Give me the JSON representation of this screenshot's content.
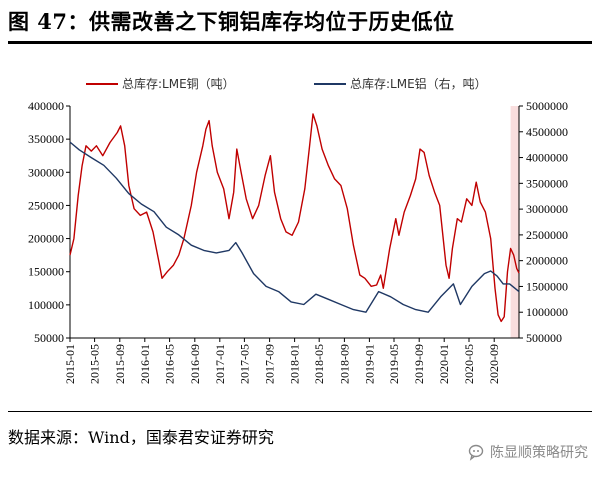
{
  "title": "图 47：供需改善之下铜铝库存均位于历史低位",
  "source": "数据来源：Wind，国泰君安证券研究",
  "watermark": "陈显顺策略研究",
  "watermark_icon": "wechat-bubble-icon",
  "colors": {
    "copper": "#c00000",
    "aluminium": "#1f3864",
    "highlight": "#f9dede"
  },
  "chart_data": {
    "type": "line",
    "title": "",
    "legend_position": "top",
    "grid": false,
    "x_ticks": [
      "2015-01",
      "2015-05",
      "2015-09",
      "2016-01",
      "2016-05",
      "2016-09",
      "2017-01",
      "2017-05",
      "2017-09",
      "2018-01",
      "2018-05",
      "2018-09",
      "2019-01",
      "2019-05",
      "2019-09",
      "2020-01",
      "2020-05",
      "2020-09"
    ],
    "x_range": [
      "2015-01-01",
      "2020-12-31"
    ],
    "highlight_period": [
      "2020-11-20",
      "2020-12-31"
    ],
    "y_left": {
      "min": 50000,
      "max": 400000,
      "ticks": [
        "50000",
        "100000",
        "150000",
        "200000",
        "250000",
        "300000",
        "350000",
        "400000"
      ]
    },
    "y_right": {
      "min": 500000,
      "max": 5000000,
      "ticks": [
        "500000",
        "1000000",
        "1500000",
        "2000000",
        "2500000",
        "3000000",
        "3500000",
        "4000000",
        "4500000",
        "5000000"
      ]
    },
    "series": [
      {
        "name": "总库存:LME铜（吨）",
        "axis": "left",
        "color": "#c00000",
        "points": [
          [
            "2015-01-01",
            175000
          ],
          [
            "2015-01-20",
            200000
          ],
          [
            "2015-02-10",
            265000
          ],
          [
            "2015-03-01",
            310000
          ],
          [
            "2015-03-20",
            340000
          ],
          [
            "2015-04-15",
            332000
          ],
          [
            "2015-05-10",
            340000
          ],
          [
            "2015-06-10",
            325000
          ],
          [
            "2015-07-15",
            345000
          ],
          [
            "2015-08-20",
            360000
          ],
          [
            "2015-09-05",
            370000
          ],
          [
            "2015-09-25",
            340000
          ],
          [
            "2015-10-15",
            280000
          ],
          [
            "2015-11-10",
            245000
          ],
          [
            "2015-12-10",
            235000
          ],
          [
            "2016-01-10",
            240000
          ],
          [
            "2016-02-10",
            210000
          ],
          [
            "2016-03-10",
            165000
          ],
          [
            "2016-03-25",
            140000
          ],
          [
            "2016-04-20",
            150000
          ],
          [
            "2016-05-20",
            160000
          ],
          [
            "2016-06-15",
            175000
          ],
          [
            "2016-07-10",
            200000
          ],
          [
            "2016-08-15",
            250000
          ],
          [
            "2016-09-10",
            300000
          ],
          [
            "2016-10-10",
            340000
          ],
          [
            "2016-10-25",
            365000
          ],
          [
            "2016-11-10",
            378000
          ],
          [
            "2016-11-25",
            340000
          ],
          [
            "2016-12-20",
            300000
          ],
          [
            "2017-01-20",
            275000
          ],
          [
            "2017-02-15",
            230000
          ],
          [
            "2017-03-10",
            270000
          ],
          [
            "2017-03-25",
            335000
          ],
          [
            "2017-04-15",
            300000
          ],
          [
            "2017-05-10",
            260000
          ],
          [
            "2017-06-10",
            230000
          ],
          [
            "2017-07-10",
            250000
          ],
          [
            "2017-08-10",
            295000
          ],
          [
            "2017-09-05",
            325000
          ],
          [
            "2017-09-25",
            270000
          ],
          [
            "2017-10-25",
            230000
          ],
          [
            "2017-11-20",
            210000
          ],
          [
            "2017-12-20",
            205000
          ],
          [
            "2018-01-20",
            225000
          ],
          [
            "2018-02-20",
            275000
          ],
          [
            "2018-03-15",
            340000
          ],
          [
            "2018-04-01",
            388000
          ],
          [
            "2018-04-20",
            370000
          ],
          [
            "2018-05-15",
            335000
          ],
          [
            "2018-06-15",
            310000
          ],
          [
            "2018-07-15",
            290000
          ],
          [
            "2018-08-15",
            280000
          ],
          [
            "2018-09-15",
            245000
          ],
          [
            "2018-10-15",
            190000
          ],
          [
            "2018-11-15",
            145000
          ],
          [
            "2018-12-10",
            140000
          ],
          [
            "2019-01-10",
            128000
          ],
          [
            "2019-02-05",
            130000
          ],
          [
            "2019-02-25",
            145000
          ],
          [
            "2019-03-10",
            125000
          ],
          [
            "2019-04-10",
            185000
          ],
          [
            "2019-05-10",
            230000
          ],
          [
            "2019-05-25",
            205000
          ],
          [
            "2019-06-20",
            240000
          ],
          [
            "2019-07-20",
            265000
          ],
          [
            "2019-08-15",
            290000
          ],
          [
            "2019-09-05",
            335000
          ],
          [
            "2019-09-25",
            330000
          ],
          [
            "2019-10-20",
            295000
          ],
          [
            "2019-11-15",
            270000
          ],
          [
            "2019-12-10",
            250000
          ],
          [
            "2020-01-10",
            160000
          ],
          [
            "2020-01-25",
            140000
          ],
          [
            "2020-02-10",
            185000
          ],
          [
            "2020-03-05",
            230000
          ],
          [
            "2020-03-25",
            225000
          ],
          [
            "2020-04-20",
            260000
          ],
          [
            "2020-05-15",
            250000
          ],
          [
            "2020-06-05",
            285000
          ],
          [
            "2020-06-25",
            255000
          ],
          [
            "2020-07-20",
            240000
          ],
          [
            "2020-08-15",
            200000
          ],
          [
            "2020-09-05",
            125000
          ],
          [
            "2020-09-20",
            85000
          ],
          [
            "2020-10-05",
            75000
          ],
          [
            "2020-10-20",
            82000
          ],
          [
            "2020-11-05",
            150000
          ],
          [
            "2020-11-20",
            185000
          ],
          [
            "2020-12-05",
            175000
          ],
          [
            "2020-12-20",
            155000
          ],
          [
            "2020-12-31",
            148000
          ]
        ]
      },
      {
        "name": "总库存:LME铝（右，吨）",
        "axis": "right",
        "color": "#1f3864",
        "points": [
          [
            "2015-01-01",
            4300000
          ],
          [
            "2015-02-15",
            4150000
          ],
          [
            "2015-04-15",
            4000000
          ],
          [
            "2015-06-15",
            3850000
          ],
          [
            "2015-08-15",
            3600000
          ],
          [
            "2015-10-15",
            3300000
          ],
          [
            "2015-12-15",
            3100000
          ],
          [
            "2016-02-15",
            2950000
          ],
          [
            "2016-04-15",
            2650000
          ],
          [
            "2016-06-15",
            2500000
          ],
          [
            "2016-08-15",
            2300000
          ],
          [
            "2016-10-15",
            2200000
          ],
          [
            "2016-12-15",
            2150000
          ],
          [
            "2017-02-15",
            2200000
          ],
          [
            "2017-03-20",
            2350000
          ],
          [
            "2017-04-20",
            2150000
          ],
          [
            "2017-06-15",
            1750000
          ],
          [
            "2017-08-15",
            1500000
          ],
          [
            "2017-10-15",
            1400000
          ],
          [
            "2017-12-15",
            1200000
          ],
          [
            "2018-02-15",
            1150000
          ],
          [
            "2018-04-15",
            1350000
          ],
          [
            "2018-06-15",
            1250000
          ],
          [
            "2018-08-15",
            1150000
          ],
          [
            "2018-10-15",
            1050000
          ],
          [
            "2018-12-15",
            1000000
          ],
          [
            "2019-02-15",
            1400000
          ],
          [
            "2019-04-15",
            1300000
          ],
          [
            "2019-06-15",
            1150000
          ],
          [
            "2019-08-15",
            1050000
          ],
          [
            "2019-10-15",
            1000000
          ],
          [
            "2019-12-15",
            1300000
          ],
          [
            "2020-02-15",
            1550000
          ],
          [
            "2020-03-20",
            1150000
          ],
          [
            "2020-05-15",
            1500000
          ],
          [
            "2020-07-15",
            1750000
          ],
          [
            "2020-08-15",
            1800000
          ],
          [
            "2020-09-15",
            1700000
          ],
          [
            "2020-10-15",
            1550000
          ],
          [
            "2020-11-15",
            1550000
          ],
          [
            "2020-12-31",
            1400000
          ]
        ]
      }
    ]
  }
}
